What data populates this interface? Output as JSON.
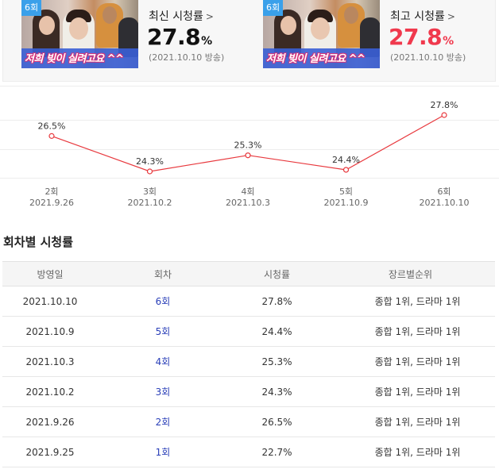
{
  "summary": {
    "latest": {
      "badge": "6회",
      "thumb_caption": "저희 빚이 실려고요 ^^",
      "title": "최신 시청률",
      "arrow": ">",
      "value": "27.8",
      "unit": "%",
      "date": "(2021.10.10 방송)"
    },
    "highest": {
      "badge": "6회",
      "thumb_caption": "저희 빚이 실려고요 ^^",
      "title": "최고 시청률",
      "arrow": ">",
      "value": "27.8",
      "unit": "%",
      "date": "(2021.10.10 방송)"
    }
  },
  "chart_data": {
    "type": "line",
    "categories": [
      "2회",
      "3회",
      "4회",
      "5회",
      "6회"
    ],
    "dates": [
      "2021.9.26",
      "2021.10.2",
      "2021.10.3",
      "2021.10.9",
      "2021.10.10"
    ],
    "values": [
      26.5,
      24.3,
      25.3,
      24.4,
      27.8
    ],
    "point_labels": [
      "26.5%",
      "24.3%",
      "25.3%",
      "24.4%",
      "27.8%"
    ],
    "line_color": "#e8383d",
    "grid": true
  },
  "section_title": "회차별 시청률",
  "table": {
    "headers": [
      "방영일",
      "회차",
      "시청률",
      "장르별순위"
    ],
    "rows": [
      [
        "2021.10.10",
        "6회",
        "27.8%",
        "종합 1위, 드라마 1위"
      ],
      [
        "2021.10.9",
        "5회",
        "24.4%",
        "종합 1위, 드라마 1위"
      ],
      [
        "2021.10.3",
        "4회",
        "25.3%",
        "종합 1위, 드라마 1위"
      ],
      [
        "2021.10.2",
        "3회",
        "24.3%",
        "종합 1위, 드라마 1위"
      ],
      [
        "2021.9.26",
        "2회",
        "26.5%",
        "종합 1위, 드라마 1위"
      ],
      [
        "2021.9.25",
        "1회",
        "22.7%",
        "종합 1위, 드라마 1위"
      ]
    ]
  },
  "colors": {
    "highlight": "#f0394d",
    "episode_link": "#2a3fb8",
    "badge": "#3aa0ea"
  }
}
